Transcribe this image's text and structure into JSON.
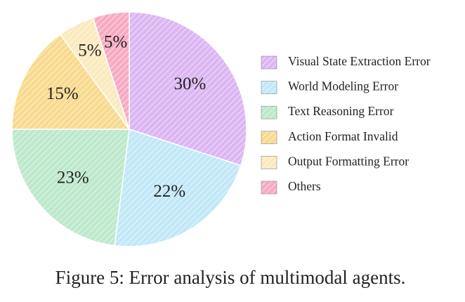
{
  "chart_data": {
    "type": "pie",
    "title": "Figure 5: Error analysis of multimodal agents.",
    "categories": [
      "Visual State Extraction Error",
      "World Modeling Error",
      "Text Reasoning Error",
      "Action Format Invalid",
      "Output Formatting Error",
      "Others"
    ],
    "values": [
      30,
      22,
      23,
      15,
      5,
      5
    ],
    "value_labels": [
      "30%",
      "22%",
      "23%",
      "15%",
      "5%",
      "5%"
    ],
    "colors": [
      "#dcb6f2",
      "#c2e8f7",
      "#bde8cc",
      "#f8da8e",
      "#faeabe",
      "#f6abc3"
    ]
  }
}
